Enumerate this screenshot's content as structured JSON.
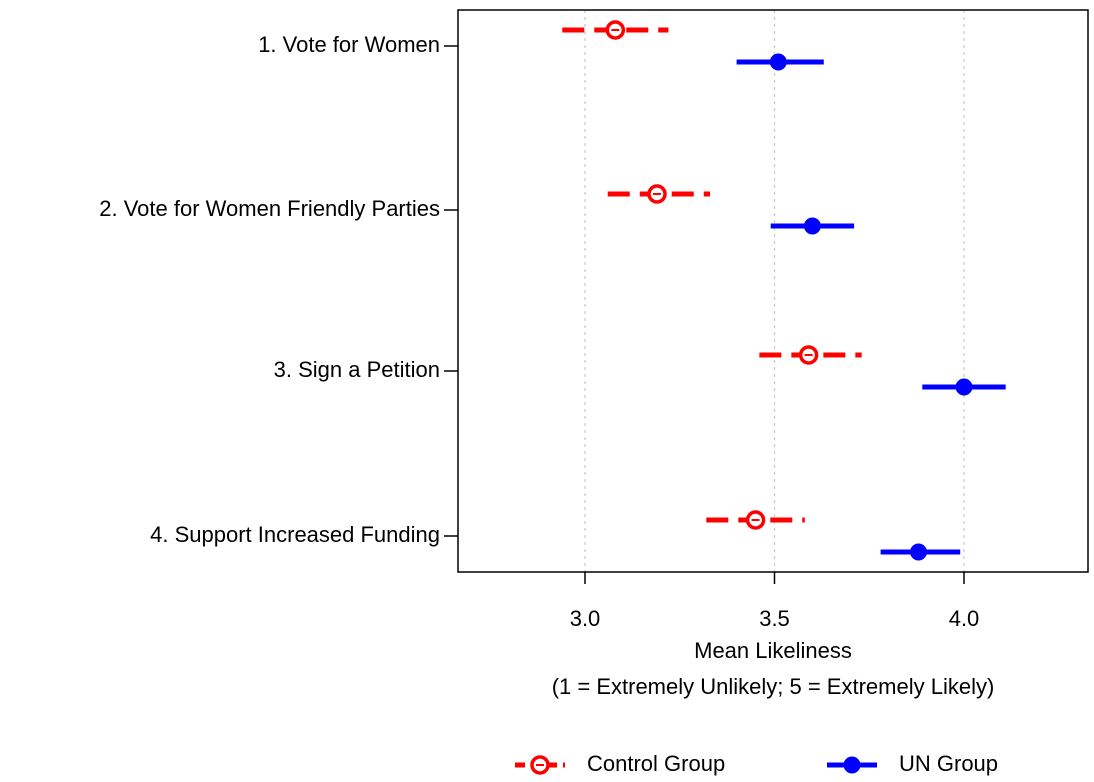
{
  "chart_data": {
    "type": "scatter",
    "orientation": "horizontal-dot-with-error-bars",
    "categories": [
      "1. Vote for Women",
      "2. Vote for Women Friendly Parties",
      "3. Sign a Petition",
      "4. Support Increased Funding"
    ],
    "series": [
      {
        "name": "Control Group",
        "color": "#ff0000",
        "line_style": "dashed",
        "marker": "open-circle",
        "values": [
          3.08,
          3.19,
          3.59,
          3.45
        ],
        "lower": [
          2.94,
          3.06,
          3.46,
          3.32
        ],
        "upper": [
          3.22,
          3.33,
          3.73,
          3.58
        ]
      },
      {
        "name": "UN Group",
        "color": "#0000ff",
        "line_style": "solid",
        "marker": "filled-circle",
        "values": [
          3.51,
          3.6,
          4.0,
          3.88
        ],
        "lower": [
          3.4,
          3.49,
          3.89,
          3.78
        ],
        "upper": [
          3.63,
          3.71,
          4.11,
          3.99
        ]
      }
    ],
    "xlabel": "Mean Likeliness",
    "xlabel_sub": "(1 = Extremely Unlikely; 5 = Extremely Likely)",
    "xticks": [
      3.0,
      3.5,
      4.0
    ],
    "xtick_labels": [
      "3.0",
      "3.5",
      "4.0"
    ],
    "xlim": [
      2.67,
      4.34
    ],
    "grid": "vertical dotted at ticks",
    "legend_position": "bottom"
  }
}
